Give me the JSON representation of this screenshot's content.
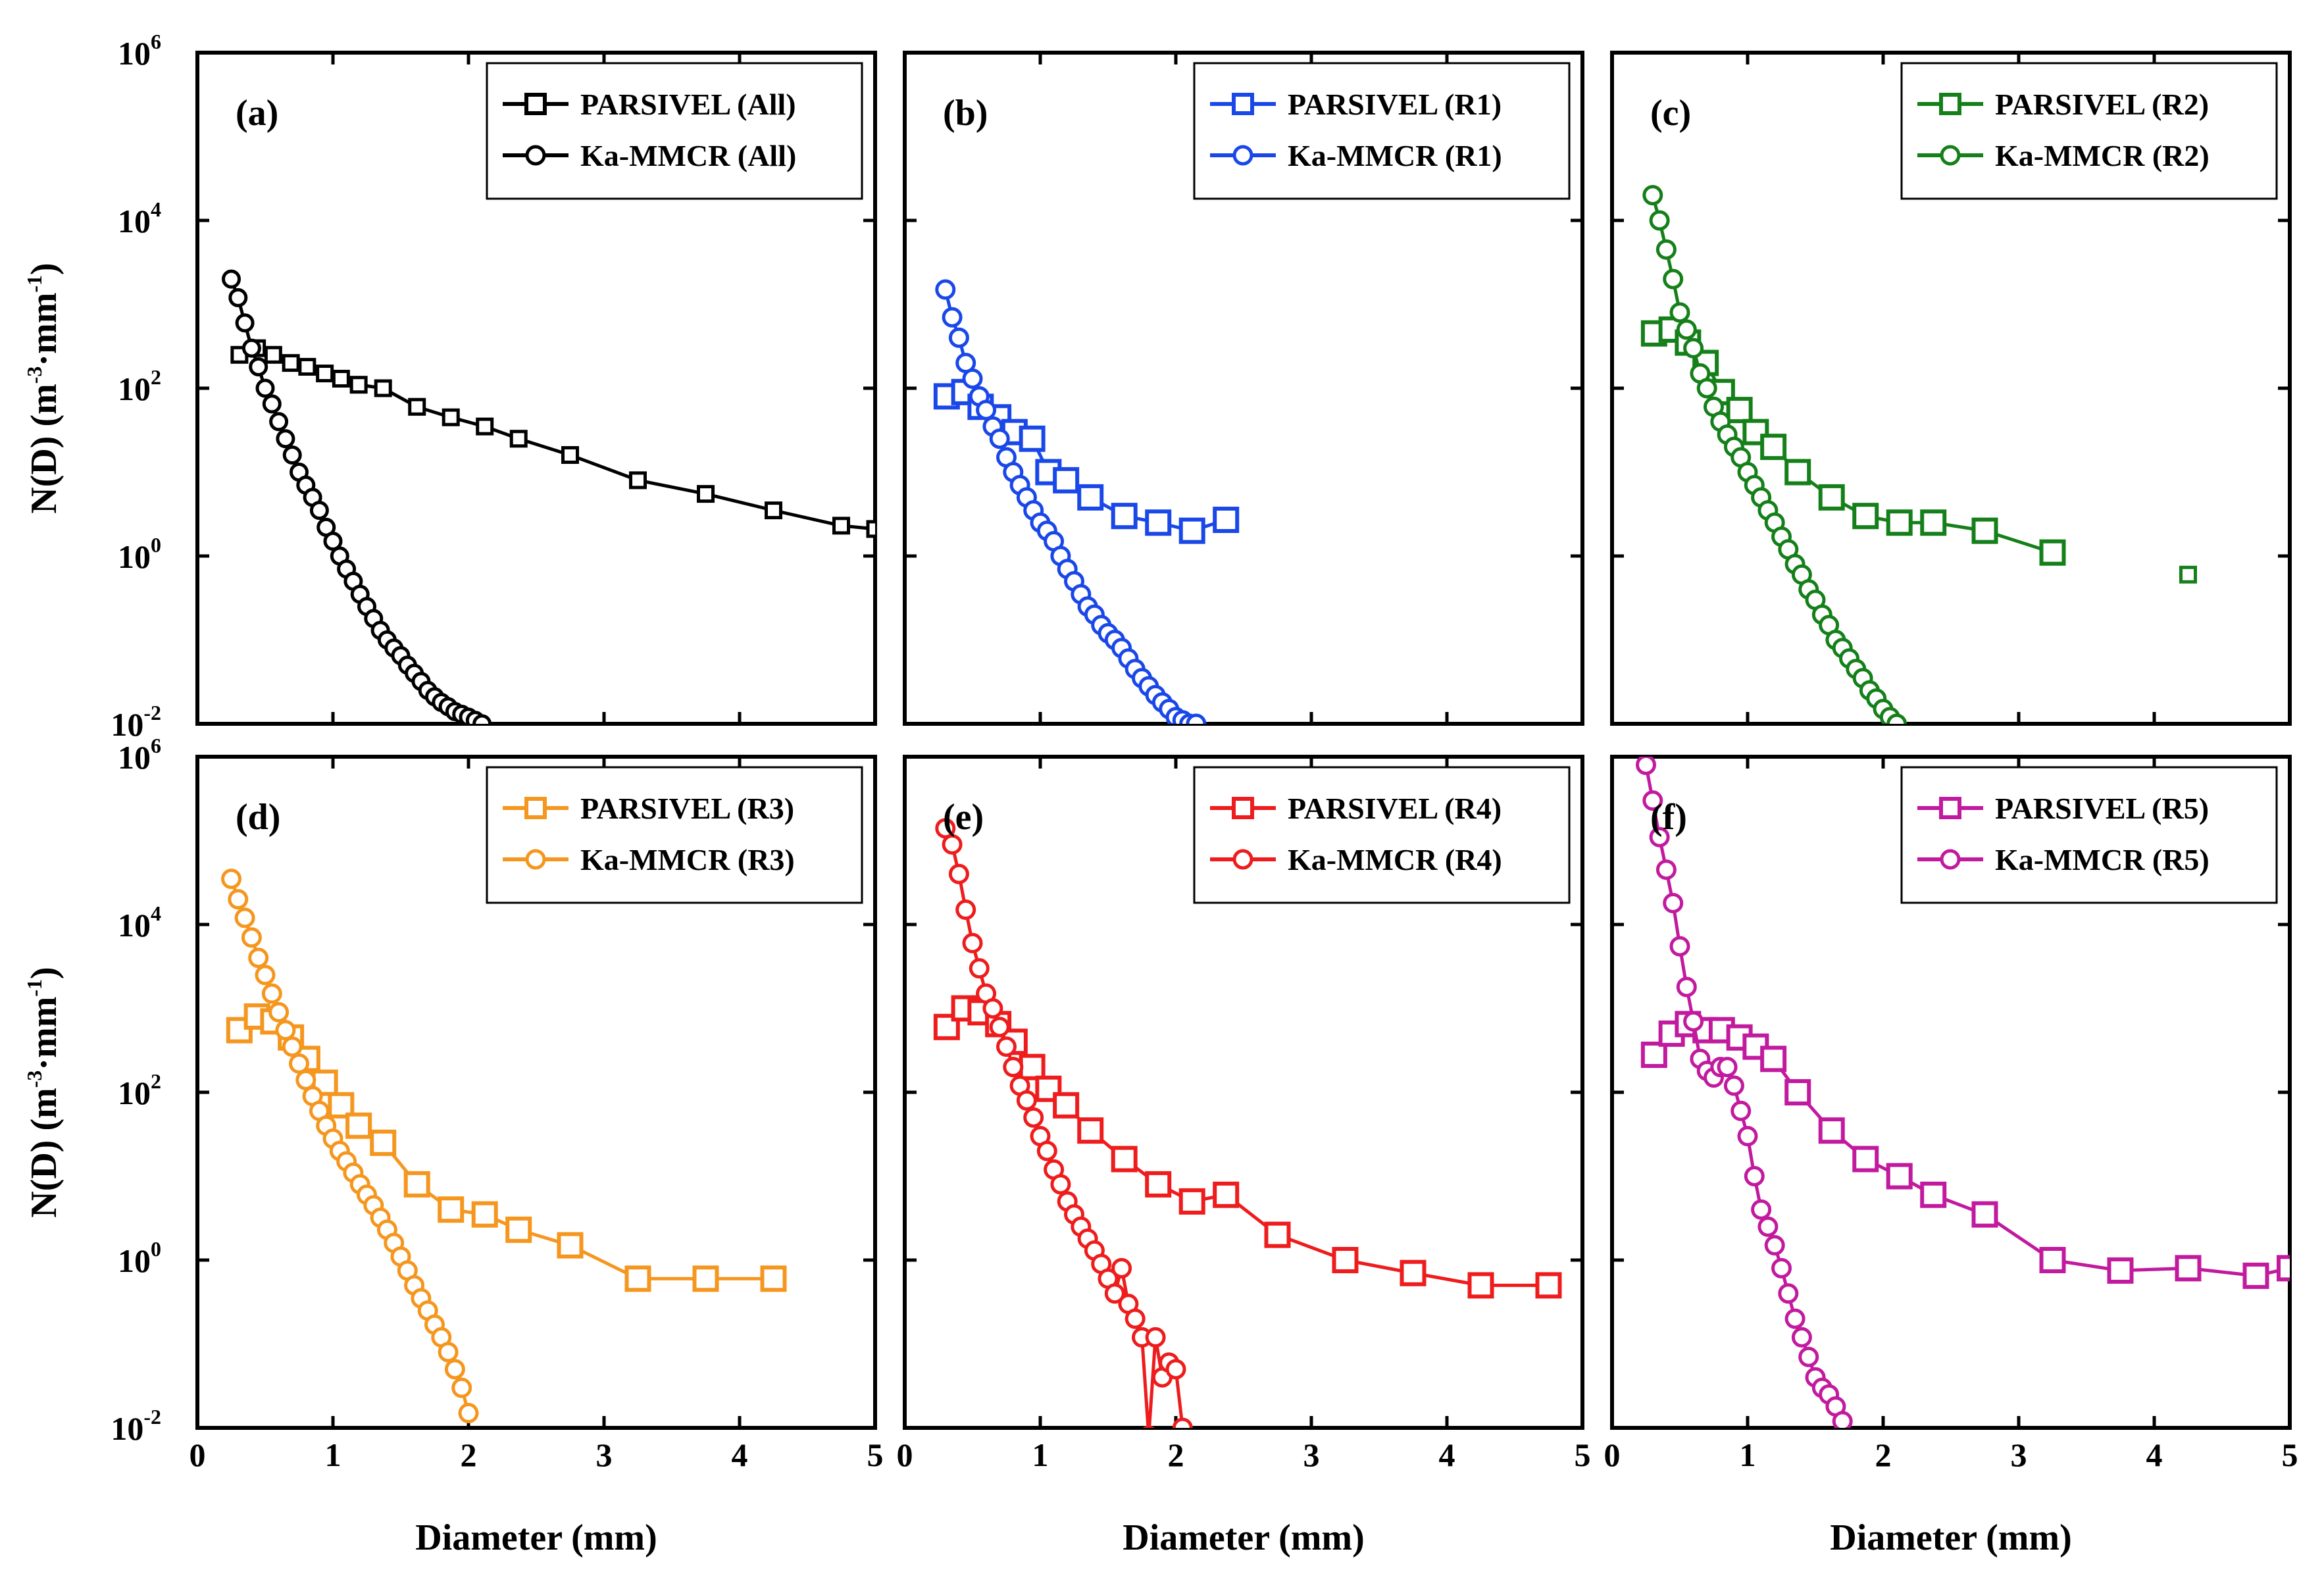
{
  "chart_data": {
    "type": "line",
    "layout": "2x3 panels, shared x axis per column, shared y axis per row",
    "xlabel": "Diameter (mm)",
    "ylabel": "N(D) (m-3·mm-1)",
    "ylabel_parts": {
      "base": "N(D) (m",
      "sup1": "-3",
      "mid": "·mm",
      "sup2": "-1",
      "end": ")"
    },
    "xlim": [
      0,
      5
    ],
    "ylim": [
      0.01,
      1000000
    ],
    "yscale": "log",
    "x_ticks": [
      "0",
      "1",
      "2",
      "3",
      "4",
      "5"
    ],
    "y_ticks": [
      {
        "base": "10",
        "exp": "-2"
      },
      {
        "base": "10",
        "exp": "0"
      },
      {
        "base": "10",
        "exp": "2"
      },
      {
        "base": "10",
        "exp": "4"
      },
      {
        "base": "10",
        "exp": "6"
      }
    ],
    "grid": false,
    "legend_position": "top-right",
    "panels": [
      {
        "label": "(a)",
        "color": "#000000",
        "series": [
          {
            "name": "PARSIVEL (All)",
            "marker": "square",
            "size": "small",
            "x": [
              0.31,
              0.44,
              0.56,
              0.69,
              0.81,
              0.94,
              1.06,
              1.19,
              1.37,
              1.62,
              1.87,
              2.12,
              2.37,
              2.75,
              3.25,
              3.75,
              4.25,
              4.75,
              5.0
            ],
            "y": [
              250,
              300,
              250,
              200,
              180,
              150,
              130,
              110,
              100,
              60,
              45,
              35,
              25,
              16,
              8,
              5.5,
              3.5,
              2.3,
              2.1
            ]
          },
          {
            "name": "Ka-MMCR (All)",
            "marker": "circle",
            "size": "small",
            "x": [
              0.25,
              0.3,
              0.35,
              0.4,
              0.45,
              0.5,
              0.55,
              0.6,
              0.65,
              0.7,
              0.75,
              0.8,
              0.85,
              0.9,
              0.95,
              1.0,
              1.05,
              1.1,
              1.15,
              1.2,
              1.25,
              1.3,
              1.35,
              1.4,
              1.45,
              1.5,
              1.55,
              1.6,
              1.65,
              1.7,
              1.75,
              1.8,
              1.85,
              1.9,
              1.95,
              2.0,
              2.05,
              2.1
            ],
            "y": [
              2000,
              1200,
              600,
              300,
              180,
              100,
              65,
              40,
              25,
              16,
              10,
              7,
              5,
              3.5,
              2.2,
              1.5,
              1,
              0.7,
              0.5,
              0.35,
              0.25,
              0.18,
              0.13,
              0.1,
              0.08,
              0.065,
              0.05,
              0.04,
              0.032,
              0.025,
              0.021,
              0.018,
              0.016,
              0.014,
              0.013,
              0.012,
              0.011,
              0.01
            ]
          }
        ]
      },
      {
        "label": "(b)",
        "color": "#1a48e8",
        "series": [
          {
            "name": "PARSIVEL (R1)",
            "marker": "square",
            "size": "large",
            "x": [
              0.31,
              0.44,
              0.56,
              0.69,
              0.81,
              0.94,
              1.06,
              1.19,
              1.37,
              1.62,
              1.87,
              2.12,
              2.37
            ],
            "y": [
              80,
              90,
              60,
              45,
              30,
              25,
              10,
              8,
              5,
              3,
              2.5,
              2,
              2.7
            ]
          },
          {
            "name": "Ka-MMCR (R1)",
            "marker": "circle",
            "size": "large",
            "x": [
              0.3,
              0.35,
              0.4,
              0.45,
              0.5,
              0.55,
              0.6,
              0.65,
              0.7,
              0.75,
              0.8,
              0.85,
              0.9,
              0.95,
              1.0,
              1.05,
              1.1,
              1.15,
              1.2,
              1.25,
              1.3,
              1.35,
              1.4,
              1.45,
              1.5,
              1.55,
              1.6,
              1.65,
              1.7,
              1.75,
              1.8,
              1.85,
              1.9,
              1.95,
              2.0,
              2.05,
              2.1,
              2.15
            ],
            "y": [
              1500,
              700,
              400,
              200,
              130,
              80,
              55,
              35,
              25,
              15,
              10,
              7,
              5,
              3.5,
              2.5,
              2,
              1.5,
              1,
              0.7,
              0.5,
              0.35,
              0.25,
              0.2,
              0.15,
              0.12,
              0.1,
              0.08,
              0.06,
              0.045,
              0.035,
              0.028,
              0.022,
              0.018,
              0.015,
              0.012,
              0.011,
              0.01,
              0.01
            ]
          }
        ]
      },
      {
        "label": "(c)",
        "color": "#15801a",
        "series": [
          {
            "name": "PARSIVEL (R2)",
            "marker": "square",
            "size": "large",
            "x": [
              0.31,
              0.44,
              0.56,
              0.69,
              0.81,
              0.94,
              1.06,
              1.19,
              1.37,
              1.62,
              1.87,
              2.12,
              2.37,
              2.75,
              3.25
            ],
            "y": [
              450,
              500,
              350,
              200,
              90,
              55,
              30,
              20,
              10,
              5,
              3,
              2.5,
              2.5,
              2,
              1.1
            ]
          },
          {
            "name": "Ka-MMCR (R2)",
            "marker": "circle",
            "size": "large",
            "x": [
              0.3,
              0.35,
              0.4,
              0.45,
              0.5,
              0.55,
              0.6,
              0.65,
              0.7,
              0.75,
              0.8,
              0.85,
              0.9,
              0.95,
              1.0,
              1.05,
              1.1,
              1.15,
              1.2,
              1.25,
              1.3,
              1.35,
              1.4,
              1.45,
              1.5,
              1.55,
              1.6,
              1.65,
              1.7,
              1.75,
              1.8,
              1.85,
              1.9,
              1.95,
              2.0,
              2.05,
              2.1
            ],
            "y": [
              20000,
              10000,
              4500,
              2000,
              800,
              500,
              300,
              150,
              100,
              60,
              40,
              28,
              20,
              15,
              10,
              7,
              5,
              3.5,
              2.5,
              1.7,
              1.2,
              0.8,
              0.6,
              0.4,
              0.3,
              0.2,
              0.15,
              0.1,
              0.08,
              0.06,
              0.045,
              0.035,
              0.025,
              0.02,
              0.015,
              0.012,
              0.01
            ]
          },
          {
            "name": "",
            "marker": "square",
            "size": "small",
            "x": [
              4.25
            ],
            "y": [
              0.6
            ]
          }
        ]
      },
      {
        "label": "(d)",
        "color": "#f5961e",
        "series": [
          {
            "name": "PARSIVEL (R3)",
            "marker": "square",
            "size": "large",
            "x": [
              0.31,
              0.44,
              0.56,
              0.69,
              0.81,
              0.94,
              1.06,
              1.19,
              1.37,
              1.62,
              1.87,
              2.12,
              2.37,
              2.75,
              3.25,
              3.75,
              4.25
            ],
            "y": [
              550,
              800,
              700,
              450,
              250,
              130,
              70,
              40,
              25,
              8,
              4,
              3.5,
              2.3,
              1.5,
              0.6,
              0.6,
              0.6
            ]
          },
          {
            "name": "Ka-MMCR (R3)",
            "marker": "circle",
            "size": "large",
            "x": [
              0.25,
              0.3,
              0.35,
              0.4,
              0.45,
              0.5,
              0.55,
              0.6,
              0.65,
              0.7,
              0.75,
              0.8,
              0.85,
              0.9,
              0.95,
              1.0,
              1.05,
              1.1,
              1.15,
              1.2,
              1.25,
              1.3,
              1.35,
              1.4,
              1.45,
              1.5,
              1.55,
              1.6,
              1.65,
              1.7,
              1.75,
              1.8,
              1.85,
              1.9,
              1.95,
              2.0
            ],
            "y": [
              35000,
              20000,
              12000,
              7000,
              4000,
              2500,
              1500,
              900,
              550,
              350,
              220,
              140,
              90,
              60,
              40,
              28,
              20,
              15,
              11,
              8,
              6,
              4.5,
              3.2,
              2.3,
              1.6,
              1.1,
              0.75,
              0.5,
              0.35,
              0.25,
              0.17,
              0.12,
              0.08,
              0.05,
              0.03,
              0.015
            ]
          }
        ]
      },
      {
        "label": "(e)",
        "color": "#ee1c1c",
        "series": [
          {
            "name": "PARSIVEL (R4)",
            "marker": "square",
            "size": "large",
            "x": [
              0.31,
              0.44,
              0.56,
              0.69,
              0.81,
              0.94,
              1.06,
              1.19,
              1.37,
              1.62,
              1.87,
              2.12,
              2.37,
              2.75,
              3.25,
              3.75,
              4.25,
              4.75
            ],
            "y": [
              600,
              1000,
              900,
              650,
              400,
              200,
              110,
              70,
              35,
              16,
              8,
              5,
              6,
              2,
              1,
              0.7,
              0.5,
              0.5
            ]
          },
          {
            "name": "Ka-MMCR (R4)",
            "marker": "circle",
            "size": "large",
            "x": [
              0.3,
              0.35,
              0.4,
              0.45,
              0.5,
              0.55,
              0.6,
              0.65,
              0.7,
              0.75,
              0.8,
              0.85,
              0.9,
              0.95,
              1.0,
              1.05,
              1.1,
              1.15,
              1.2,
              1.25,
              1.3,
              1.35,
              1.4,
              1.45,
              1.5,
              1.55,
              1.6,
              1.65,
              1.7,
              1.75,
              1.8,
              1.85,
              1.9,
              1.95,
              2.0,
              2.05
            ],
            "y": [
              140000,
              90000,
              40000,
              15000,
              6000,
              3000,
              1500,
              1000,
              600,
              350,
              200,
              120,
              80,
              50,
              30,
              20,
              12,
              8,
              5,
              3.5,
              2.5,
              1.8,
              1.3,
              0.9,
              0.6,
              0.4,
              0.8,
              0.3,
              0.2,
              0.12,
              0.008,
              0.12,
              0.04,
              0.06,
              0.05,
              0.01
            ]
          }
        ]
      },
      {
        "label": "(f)",
        "color": "#c21a9e",
        "series": [
          {
            "name": "PARSIVEL (R5)",
            "marker": "square",
            "size": "large",
            "x": [
              0.31,
              0.44,
              0.56,
              0.69,
              0.81,
              0.94,
              1.06,
              1.19,
              1.37,
              1.62,
              1.87,
              2.12,
              2.37,
              2.75,
              3.25,
              3.75,
              4.25,
              4.75,
              5.0
            ],
            "y": [
              280,
              500,
              650,
              550,
              550,
              450,
              350,
              250,
              100,
              35,
              16,
              10,
              6,
              3.5,
              1,
              0.75,
              0.8,
              0.65,
              0.8
            ]
          },
          {
            "name": "Ka-MMCR (R5)",
            "marker": "circle",
            "size": "large",
            "x": [
              0.25,
              0.3,
              0.35,
              0.4,
              0.45,
              0.5,
              0.55,
              0.6,
              0.65,
              0.7,
              0.75,
              0.8,
              0.85,
              0.9,
              0.95,
              1.0,
              1.05,
              1.1,
              1.15,
              1.2,
              1.25,
              1.3,
              1.35,
              1.4,
              1.45,
              1.5,
              1.55,
              1.6,
              1.65,
              1.7
            ],
            "y": [
              800000,
              300000,
              110000,
              45000,
              18000,
              5500,
              1800,
              700,
              250,
              180,
              150,
              200,
              200,
              120,
              60,
              30,
              10,
              4,
              2.5,
              1.5,
              0.8,
              0.4,
              0.2,
              0.12,
              0.07,
              0.04,
              0.03,
              0.025,
              0.018,
              0.012
            ]
          }
        ]
      }
    ]
  }
}
